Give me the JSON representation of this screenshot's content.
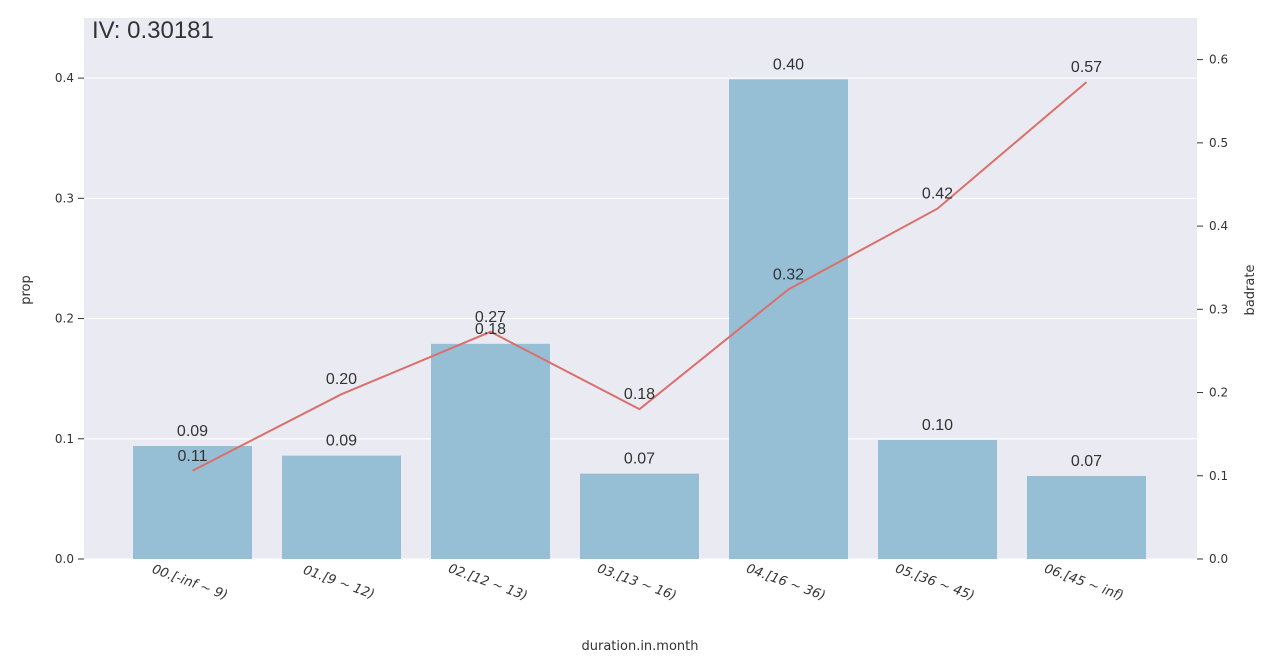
{
  "chart_data": {
    "type": "bar",
    "title": "IV: 0.30181",
    "xlabel": "duration.in.month",
    "ylabel": "prop",
    "y2label": "badrate",
    "categories": [
      "00.[-inf ~ 9)",
      "01.[9 ~ 12)",
      "02.[12 ~ 13)",
      "03.[13 ~ 16)",
      "04.[16 ~ 36)",
      "05.[36 ~ 45)",
      "06.[45 ~ inf)"
    ],
    "series": [
      {
        "type": "bar",
        "axis": "left",
        "values": [
          0.094,
          0.086,
          0.179,
          0.071,
          0.399,
          0.099,
          0.069
        ],
        "labels": [
          "0.09",
          "0.09",
          "0.18",
          "0.07",
          "0.40",
          "0.10",
          "0.07"
        ],
        "color": "#96bfd6"
      },
      {
        "type": "line",
        "axis": "right",
        "values": [
          0.106,
          0.198,
          0.273,
          0.18,
          0.324,
          0.421,
          0.573
        ],
        "labels": [
          "0.11",
          "0.20",
          "0.27",
          "0.18",
          "0.32",
          "0.42",
          "0.57"
        ],
        "color": "#d9706b"
      }
    ],
    "ylim": [
      0,
      0.45
    ],
    "y2lim": [
      0,
      0.65
    ],
    "yticks": [
      "0.0",
      "0.1",
      "0.2",
      "0.3",
      "0.4"
    ],
    "y2ticks": [
      "0.0",
      "0.1",
      "0.2",
      "0.3",
      "0.4",
      "0.5",
      "0.6"
    ],
    "grid": true,
    "background": "#eaeaf2"
  }
}
